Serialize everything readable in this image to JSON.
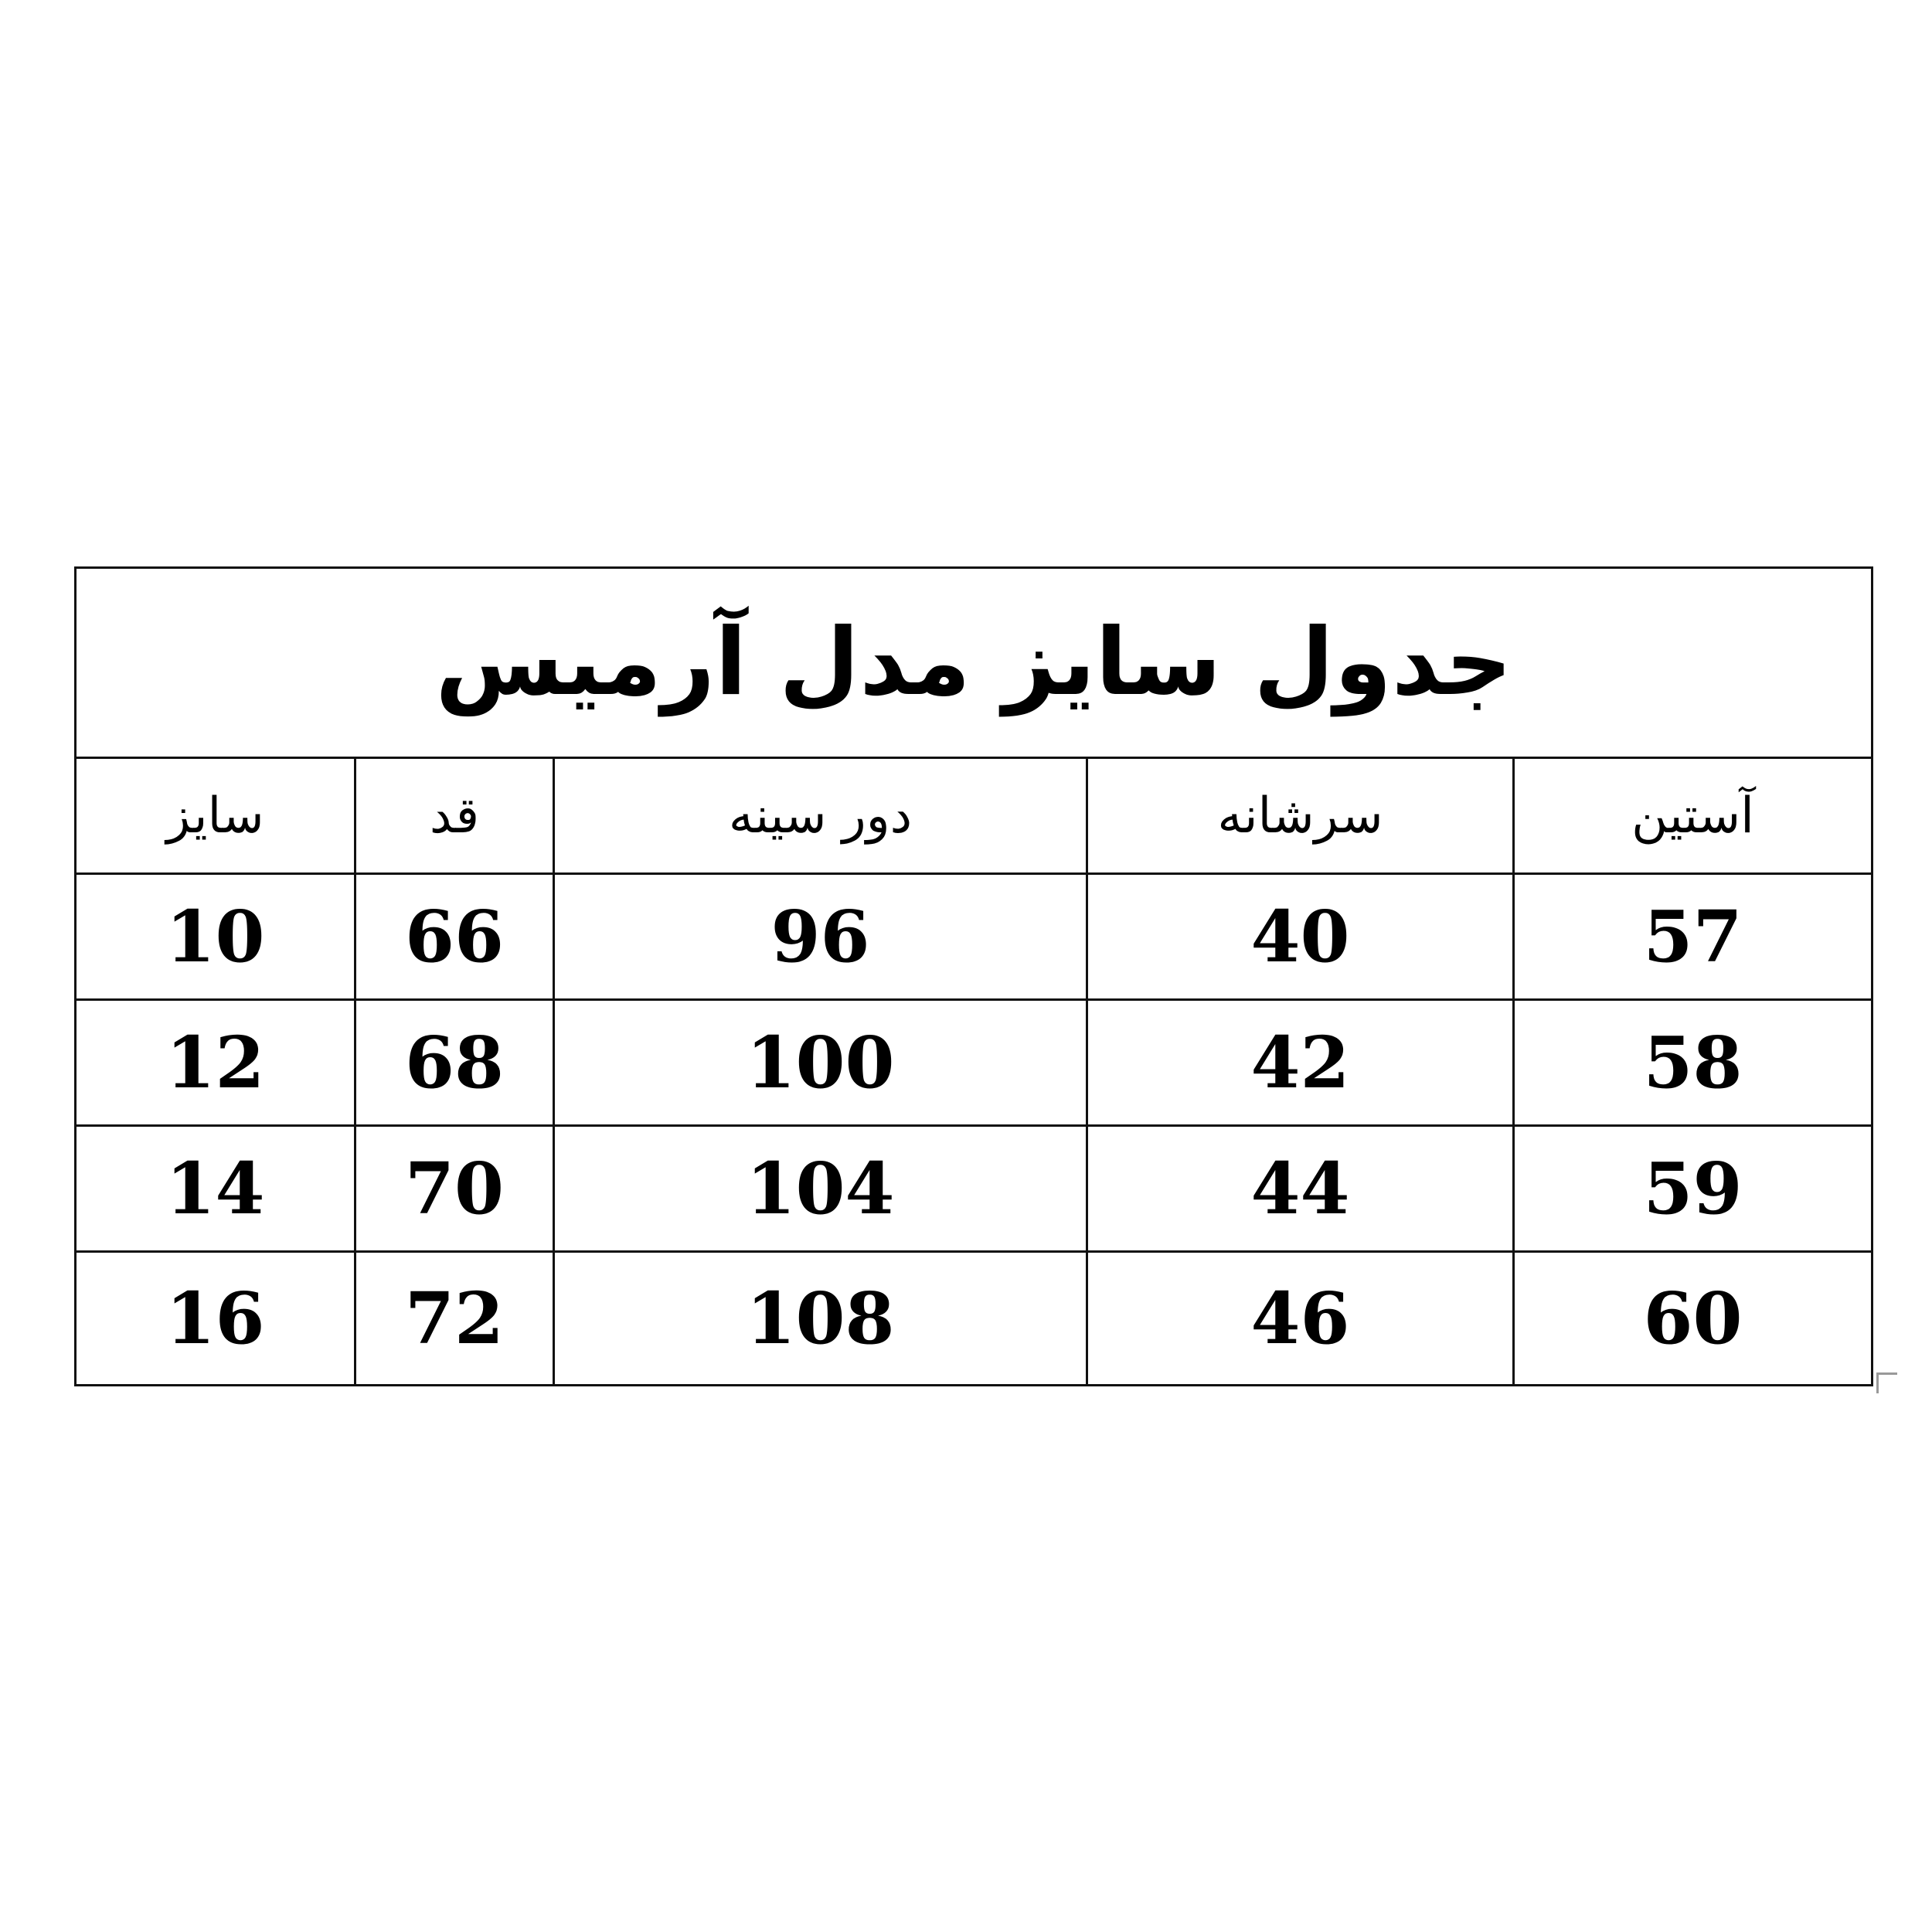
{
  "title": "جدول سایز مدل آرمیس",
  "headers": [
    "آستین",
    "سرشانه",
    "دور سینه",
    "قد",
    "سایز"
  ],
  "rows": [
    [
      "57",
      "40",
      "96",
      "66",
      "10"
    ],
    [
      "58",
      "42",
      "100",
      "68",
      "12"
    ],
    [
      "59",
      "44",
      "104",
      "70",
      "14"
    ],
    [
      "60",
      "46",
      "108",
      "72",
      "16"
    ]
  ]
}
